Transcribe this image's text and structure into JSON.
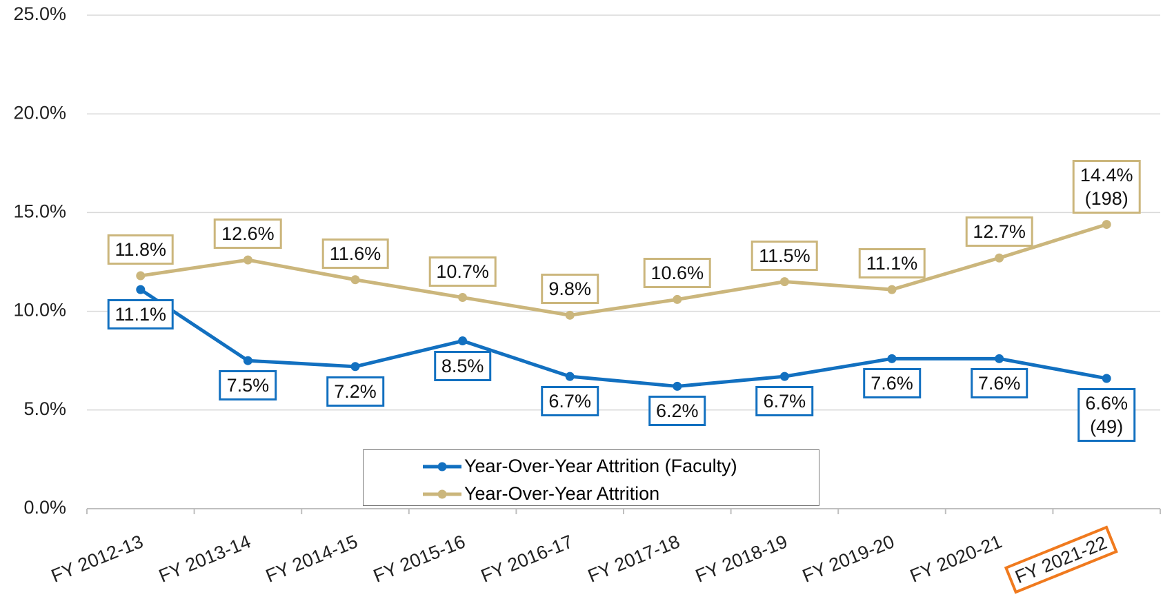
{
  "chart_data": {
    "type": "line",
    "categories": [
      "FY 2012-13",
      "FY 2013-14",
      "FY 2014-15",
      "FY 2015-16",
      "FY 2016-17",
      "FY 2017-18",
      "FY 2018-19",
      "FY 2019-20",
      "FY 2020-21",
      "FY 2021-22"
    ],
    "series": [
      {
        "name": "Year-Over-Year Attrition (Faculty)",
        "color": "#1270c0",
        "values": [
          11.1,
          7.5,
          7.2,
          8.5,
          6.7,
          6.2,
          6.7,
          7.6,
          7.6,
          6.6
        ],
        "value_labels": [
          "11.1%",
          "7.5%",
          "7.2%",
          "8.5%",
          "6.7%",
          "6.2%",
          "6.7%",
          "7.6%",
          "7.6%",
          "6.6%\n(49)"
        ]
      },
      {
        "name": "Year-Over-Year Attrition",
        "color": "#cbb67c",
        "values": [
          11.8,
          12.6,
          11.6,
          10.7,
          9.8,
          10.6,
          11.5,
          11.1,
          12.7,
          14.4
        ],
        "value_labels": [
          "11.8%",
          "12.6%",
          "11.6%",
          "10.7%",
          "9.8%",
          "10.6%",
          "11.5%",
          "11.1%",
          "12.7%",
          "14.4%\n(198)"
        ]
      }
    ],
    "ylim": [
      0,
      25
    ],
    "yticks": [
      {
        "value": 0,
        "label": "0.0%"
      },
      {
        "value": 5,
        "label": "5.0%"
      },
      {
        "value": 10,
        "label": "10.0%"
      },
      {
        "value": 15,
        "label": "15.0%"
      },
      {
        "value": 20,
        "label": "20.0%"
      },
      {
        "value": 25,
        "label": "25.0%"
      }
    ],
    "grid": true,
    "legend": "bottom",
    "highlight_category_index": 9,
    "highlight_color": "#f07a1e"
  }
}
